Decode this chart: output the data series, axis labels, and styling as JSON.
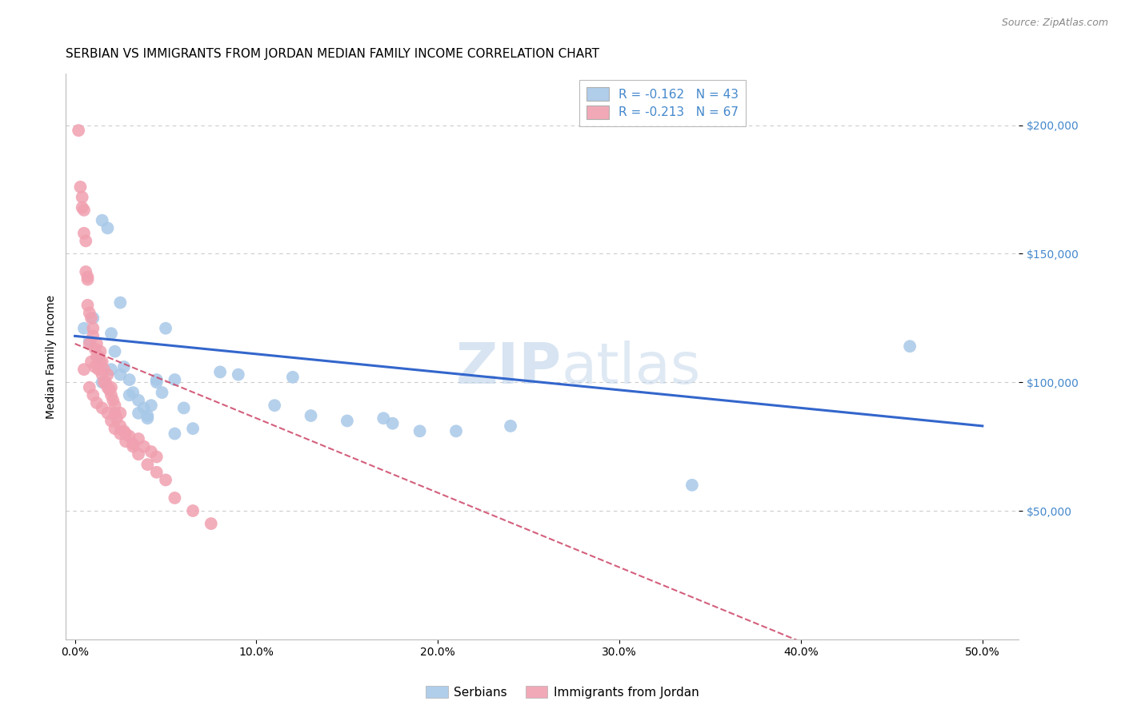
{
  "title": "SERBIAN VS IMMIGRANTS FROM JORDAN MEDIAN FAMILY INCOME CORRELATION CHART",
  "source": "Source: ZipAtlas.com",
  "ylabel": "Median Family Income",
  "xlabel_ticks": [
    "0.0%",
    "10.0%",
    "20.0%",
    "30.0%",
    "40.0%",
    "50.0%"
  ],
  "xlabel_vals": [
    0.0,
    0.1,
    0.2,
    0.3,
    0.4,
    0.5
  ],
  "ytick_labels": [
    "$50,000",
    "$100,000",
    "$150,000",
    "$200,000"
  ],
  "ytick_vals": [
    50000,
    100000,
    150000,
    200000
  ],
  "ylim": [
    0,
    220000
  ],
  "xlim": [
    -0.005,
    0.52
  ],
  "watermark_zip": "ZIP",
  "watermark_atlas": "atlas",
  "legend1_label": "R = -0.162   N = 43",
  "legend2_label": "R = -0.213   N = 67",
  "serbian_color": "#a8c8e8",
  "jordan_color": "#f0a0b0",
  "serbian_line_color": "#3366cc",
  "jordan_line_color": "#cc4466",
  "serbian_scatter_x": [
    0.005,
    0.008,
    0.01,
    0.013,
    0.015,
    0.018,
    0.02,
    0.022,
    0.025,
    0.027,
    0.03,
    0.032,
    0.035,
    0.038,
    0.04,
    0.042,
    0.045,
    0.048,
    0.05,
    0.055,
    0.065,
    0.09,
    0.11,
    0.13,
    0.15,
    0.175,
    0.19,
    0.21,
    0.24,
    0.025,
    0.015,
    0.02,
    0.03,
    0.035,
    0.04,
    0.045,
    0.06,
    0.055,
    0.08,
    0.12,
    0.17,
    0.46,
    0.34
  ],
  "serbian_scatter_y": [
    121000,
    116000,
    125000,
    110000,
    163000,
    160000,
    119000,
    112000,
    131000,
    106000,
    101000,
    96000,
    93000,
    90000,
    86000,
    91000,
    101000,
    96000,
    121000,
    101000,
    82000,
    103000,
    91000,
    87000,
    85000,
    84000,
    81000,
    81000,
    83000,
    103000,
    100000,
    105000,
    95000,
    88000,
    87000,
    100000,
    90000,
    80000,
    104000,
    102000,
    86000,
    114000,
    60000
  ],
  "jordan_scatter_x": [
    0.002,
    0.003,
    0.004,
    0.005,
    0.005,
    0.006,
    0.006,
    0.007,
    0.007,
    0.008,
    0.008,
    0.009,
    0.009,
    0.01,
    0.01,
    0.011,
    0.011,
    0.012,
    0.012,
    0.013,
    0.013,
    0.014,
    0.014,
    0.015,
    0.015,
    0.016,
    0.016,
    0.017,
    0.018,
    0.018,
    0.019,
    0.02,
    0.02,
    0.021,
    0.022,
    0.022,
    0.023,
    0.025,
    0.025,
    0.027,
    0.028,
    0.03,
    0.032,
    0.035,
    0.038,
    0.042,
    0.045,
    0.005,
    0.008,
    0.01,
    0.012,
    0.015,
    0.018,
    0.02,
    0.022,
    0.025,
    0.028,
    0.032,
    0.035,
    0.04,
    0.045,
    0.05,
    0.055,
    0.065,
    0.075,
    0.004,
    0.007
  ],
  "jordan_scatter_y": [
    198000,
    176000,
    172000,
    158000,
    167000,
    143000,
    155000,
    141000,
    130000,
    127000,
    115000,
    125000,
    108000,
    121000,
    118000,
    113000,
    106000,
    115000,
    110000,
    110000,
    105000,
    112000,
    108000,
    108000,
    103000,
    105000,
    100000,
    100000,
    98000,
    103000,
    97000,
    98000,
    95000,
    93000,
    91000,
    88000,
    86000,
    88000,
    83000,
    81000,
    80000,
    79000,
    76000,
    78000,
    75000,
    73000,
    71000,
    105000,
    98000,
    95000,
    92000,
    90000,
    88000,
    85000,
    82000,
    80000,
    77000,
    75000,
    72000,
    68000,
    65000,
    62000,
    55000,
    50000,
    45000,
    168000,
    140000
  ],
  "grid_color": "#cccccc",
  "background_color": "#ffffff",
  "title_fontsize": 11,
  "axis_label_fontsize": 10,
  "tick_fontsize": 10,
  "ytick_color": "#4488cc",
  "legend_fontsize": 11
}
